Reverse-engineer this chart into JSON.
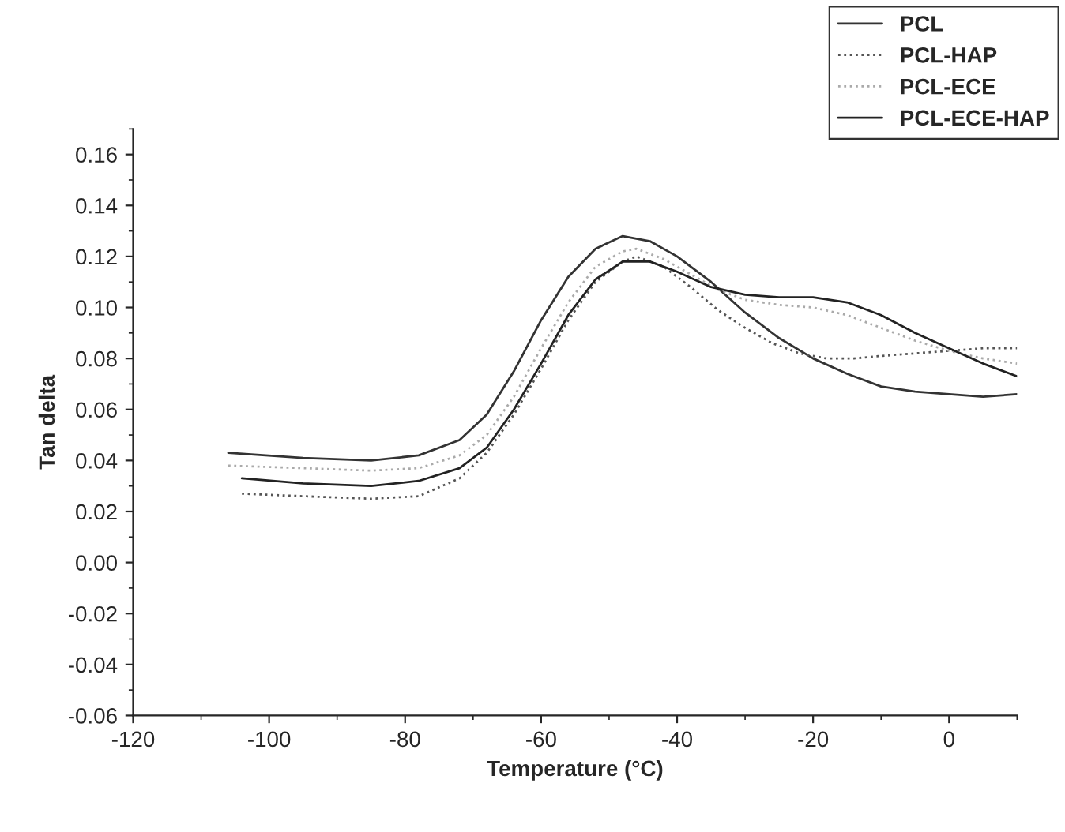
{
  "chart_data": {
    "type": "line",
    "xlabel": "Temperature (°C)",
    "ylabel": "Tan delta",
    "xlim": [
      -120,
      10
    ],
    "xticks": [
      -120,
      -100,
      -80,
      -60,
      -40,
      -20,
      0
    ],
    "ylim": [
      -0.06,
      0.17
    ],
    "yticks": [
      -0.06,
      -0.04,
      -0.02,
      {
        "value": 0.0,
        "label": "0.00"
      },
      0.02,
      0.04,
      0.06,
      0.08,
      {
        "value": 0.1,
        "label": "0.10"
      },
      0.12,
      0.14,
      0.16
    ],
    "grid": false,
    "legend": "top right",
    "marker": "none",
    "series": [
      {
        "name": "PCL",
        "color": "#333333",
        "line_style": "solid",
        "x": [
          -106,
          -95,
          -85,
          -78,
          -72,
          -68,
          -64,
          -60,
          -56,
          -52,
          -48,
          -44,
          -40,
          -35,
          -30,
          -25,
          -20,
          -15,
          -10,
          -5,
          0,
          5,
          10
        ],
        "values": [
          0.043,
          0.041,
          0.04,
          0.042,
          0.048,
          0.058,
          0.075,
          0.095,
          0.112,
          0.123,
          0.128,
          0.126,
          0.12,
          0.11,
          0.098,
          0.088,
          0.08,
          0.074,
          0.069,
          0.067,
          0.066,
          0.065,
          0.066
        ]
      },
      {
        "name": "PCL-HAP",
        "color": "#555555",
        "line_style": "dotted",
        "x": [
          -104,
          -95,
          -85,
          -78,
          -72,
          -68,
          -64,
          -60,
          -56,
          -52,
          -48,
          -46,
          -42,
          -38,
          -34,
          -30,
          -26,
          -22,
          -18,
          -14,
          -10,
          -5,
          0,
          5,
          10
        ],
        "values": [
          0.027,
          0.026,
          0.025,
          0.026,
          0.033,
          0.043,
          0.058,
          0.076,
          0.095,
          0.11,
          0.118,
          0.12,
          0.116,
          0.108,
          0.099,
          0.092,
          0.086,
          0.082,
          0.08,
          0.08,
          0.081,
          0.082,
          0.083,
          0.084,
          0.084
        ]
      },
      {
        "name": "PCL-ECE",
        "color": "#aaaaaa",
        "line_style": "dotted",
        "x": [
          -106,
          -95,
          -85,
          -78,
          -72,
          -68,
          -64,
          -60,
          -56,
          -52,
          -48,
          -46,
          -42,
          -38,
          -34,
          -30,
          -25,
          -20,
          -15,
          -10,
          -5,
          0,
          5,
          10
        ],
        "values": [
          0.038,
          0.037,
          0.036,
          0.037,
          0.042,
          0.05,
          0.065,
          0.084,
          0.102,
          0.116,
          0.122,
          0.123,
          0.119,
          0.113,
          0.107,
          0.103,
          0.101,
          0.1,
          0.097,
          0.092,
          0.087,
          0.083,
          0.08,
          0.078
        ]
      },
      {
        "name": "PCL-ECE-HAP",
        "color": "#222222",
        "line_style": "solid",
        "x": [
          -104,
          -95,
          -85,
          -78,
          -72,
          -68,
          -64,
          -60,
          -56,
          -52,
          -48,
          -44,
          -40,
          -35,
          -30,
          -25,
          -20,
          -15,
          -10,
          -5,
          0,
          5,
          10
        ],
        "values": [
          0.033,
          0.031,
          0.03,
          0.032,
          0.037,
          0.045,
          0.06,
          0.078,
          0.097,
          0.111,
          0.118,
          0.118,
          0.114,
          0.108,
          0.105,
          0.104,
          0.104,
          0.102,
          0.097,
          0.09,
          0.084,
          0.078,
          0.073
        ]
      }
    ]
  }
}
